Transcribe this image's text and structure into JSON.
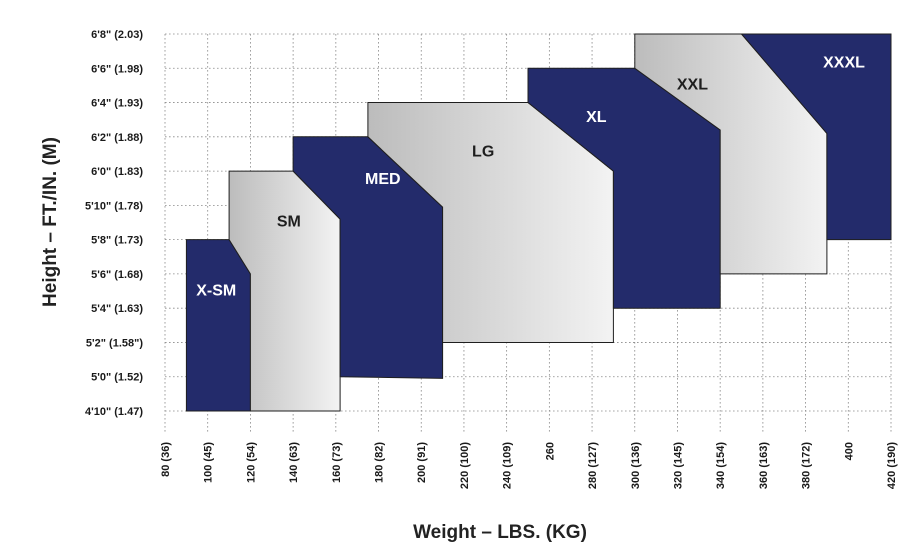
{
  "chart_data": {
    "type": "area",
    "title": "",
    "xlabel": "Weight – LBS. (KG)",
    "ylabel": "Height – FT./IN. (M)",
    "xlim": [
      80,
      420
    ],
    "ylim": [
      58,
      80
    ],
    "x_ticks": [
      {
        "value": 80,
        "label": "80 (36)"
      },
      {
        "value": 100,
        "label": "100 (45)"
      },
      {
        "value": 120,
        "label": "120 (54)"
      },
      {
        "value": 140,
        "label": "140 (63)"
      },
      {
        "value": 160,
        "label": "160 (73)"
      },
      {
        "value": 180,
        "label": "180 (82)"
      },
      {
        "value": 200,
        "label": "200 (91)"
      },
      {
        "value": 220,
        "label": "220 (100)"
      },
      {
        "value": 240,
        "label": "240 (109)"
      },
      {
        "value": 260,
        "label": "260"
      },
      {
        "value": 280,
        "label": "280 (127)"
      },
      {
        "value": 300,
        "label": "300 (136)"
      },
      {
        "value": 320,
        "label": "320 (145)"
      },
      {
        "value": 340,
        "label": "340 (154)"
      },
      {
        "value": 360,
        "label": "360 (163)"
      },
      {
        "value": 380,
        "label": "380 (172)"
      },
      {
        "value": 400,
        "label": "400"
      },
      {
        "value": 420,
        "label": "420 (190)"
      }
    ],
    "y_ticks": [
      {
        "value": 58,
        "label": "4'10\" (1.47)"
      },
      {
        "value": 60,
        "label": "5'0\" (1.52)"
      },
      {
        "value": 62,
        "label": "5'2\" (1.58\")"
      },
      {
        "value": 64,
        "label": "5'4\" (1.63)"
      },
      {
        "value": 66,
        "label": "5'6\" (1.68)"
      },
      {
        "value": 68,
        "label": "5'8\" (1.73)"
      },
      {
        "value": 70,
        "label": "5'10\" (1.78)"
      },
      {
        "value": 72,
        "label": "6'0\" (1.83)"
      },
      {
        "value": 74,
        "label": "6'2\" (1.88)"
      },
      {
        "value": 76,
        "label": "6'4\" (1.93)"
      },
      {
        "value": 78,
        "label": "6'6\" (1.98)"
      },
      {
        "value": 80,
        "label": "6'8\" (2.03)"
      }
    ],
    "series": [
      {
        "name": "X-SM",
        "fill": "#232b6b",
        "text_color": "#ffffff",
        "label_at": [
          104,
          65
        ],
        "points": [
          [
            90,
            58
          ],
          [
            90,
            68
          ],
          [
            110,
            68
          ],
          [
            120,
            66
          ],
          [
            120,
            58
          ]
        ]
      },
      {
        "name": "SM",
        "fill": "gradient",
        "text_color": "#1e1e1e",
        "label_at": [
          138,
          69
        ],
        "points": [
          [
            120,
            58
          ],
          [
            120,
            66
          ],
          [
            110,
            68
          ],
          [
            110,
            72
          ],
          [
            140,
            72
          ],
          [
            162,
            69.2
          ],
          [
            162,
            58
          ]
        ]
      },
      {
        "name": "MED",
        "fill": "#232b6b",
        "text_color": "#ffffff",
        "label_at": [
          182,
          71.5
        ],
        "points": [
          [
            162,
            60
          ],
          [
            162,
            69.2
          ],
          [
            140,
            72
          ],
          [
            140,
            74
          ],
          [
            175,
            74
          ],
          [
            210,
            69.9
          ],
          [
            210,
            59.9
          ]
        ]
      },
      {
        "name": "LG",
        "fill": "gradient",
        "text_color": "#1e1e1e",
        "label_at": [
          229,
          73.1
        ],
        "points": [
          [
            210,
            62
          ],
          [
            210,
            69.9
          ],
          [
            175,
            74
          ],
          [
            175,
            76
          ],
          [
            250,
            76
          ],
          [
            290,
            72
          ],
          [
            290,
            62
          ]
        ]
      },
      {
        "name": "XL",
        "fill": "#232b6b",
        "text_color": "#ffffff",
        "label_at": [
          282,
          75.1
        ],
        "points": [
          [
            290,
            64
          ],
          [
            290,
            72
          ],
          [
            250,
            76
          ],
          [
            250,
            78
          ],
          [
            300,
            78
          ],
          [
            340,
            74.4
          ],
          [
            340,
            64
          ]
        ]
      },
      {
        "name": "XXL",
        "fill": "gradient",
        "text_color": "#1e1e1e",
        "label_at": [
          327,
          77
        ],
        "points": [
          [
            340,
            66
          ],
          [
            340,
            74.4
          ],
          [
            300,
            78
          ],
          [
            300,
            80
          ],
          [
            350,
            80
          ],
          [
            390,
            74.2
          ],
          [
            390,
            66
          ]
        ]
      },
      {
        "name": "XXXL",
        "fill": "#232b6b",
        "text_color": "#ffffff",
        "label_at": [
          398,
          78.3
        ],
        "points": [
          [
            390,
            68
          ],
          [
            390,
            74.2
          ],
          [
            350,
            80
          ],
          [
            420,
            80
          ],
          [
            420,
            68
          ]
        ]
      }
    ],
    "colors": {
      "navy": "#232b6b",
      "gray_light": "#f3f3f3",
      "gray_dark": "#bcbcbc",
      "grid": "#8a8a8a"
    }
  }
}
